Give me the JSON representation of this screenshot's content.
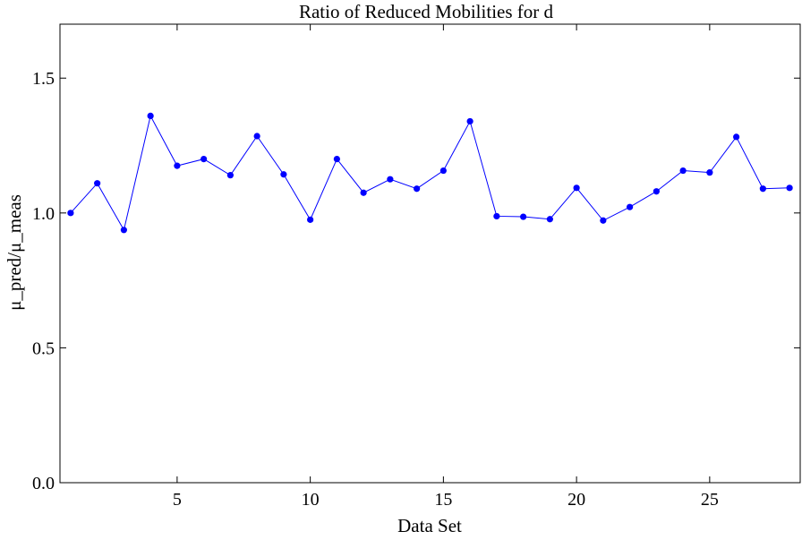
{
  "chart_data": {
    "type": "line",
    "title": "Ratio of Reduced Mobilities for d",
    "xlabel": "Data Set",
    "ylabel": "μ_pred/μ_meas",
    "xlim": [
      0.6,
      28.4
    ],
    "ylim": [
      0.0,
      1.7
    ],
    "x_ticks": [
      5,
      10,
      15,
      20,
      25
    ],
    "x_tick_labels": [
      "5",
      "10",
      "15",
      "20",
      "25"
    ],
    "y_ticks": [
      0.0,
      0.5,
      1.0,
      1.5
    ],
    "y_tick_labels": [
      "0.0",
      "0.5",
      "1.0",
      "1.5"
    ],
    "grid": false,
    "colors": {
      "series": "#0000ff",
      "frame": "#000000"
    },
    "x": [
      1,
      2,
      3,
      4,
      5,
      6,
      7,
      8,
      9,
      10,
      11,
      12,
      13,
      14,
      15,
      16,
      17,
      18,
      19,
      20,
      21,
      22,
      23,
      24,
      25,
      26,
      27,
      28
    ],
    "series": [
      {
        "values": [
          1.0,
          1.11,
          0.937,
          1.36,
          1.175,
          1.2,
          1.14,
          1.285,
          1.143,
          0.975,
          1.2,
          1.075,
          1.125,
          1.09,
          1.157,
          1.34,
          0.988,
          0.986,
          0.977,
          1.093,
          0.972,
          1.022,
          1.08,
          1.157,
          1.15,
          1.282,
          1.09,
          1.093
        ]
      }
    ]
  }
}
